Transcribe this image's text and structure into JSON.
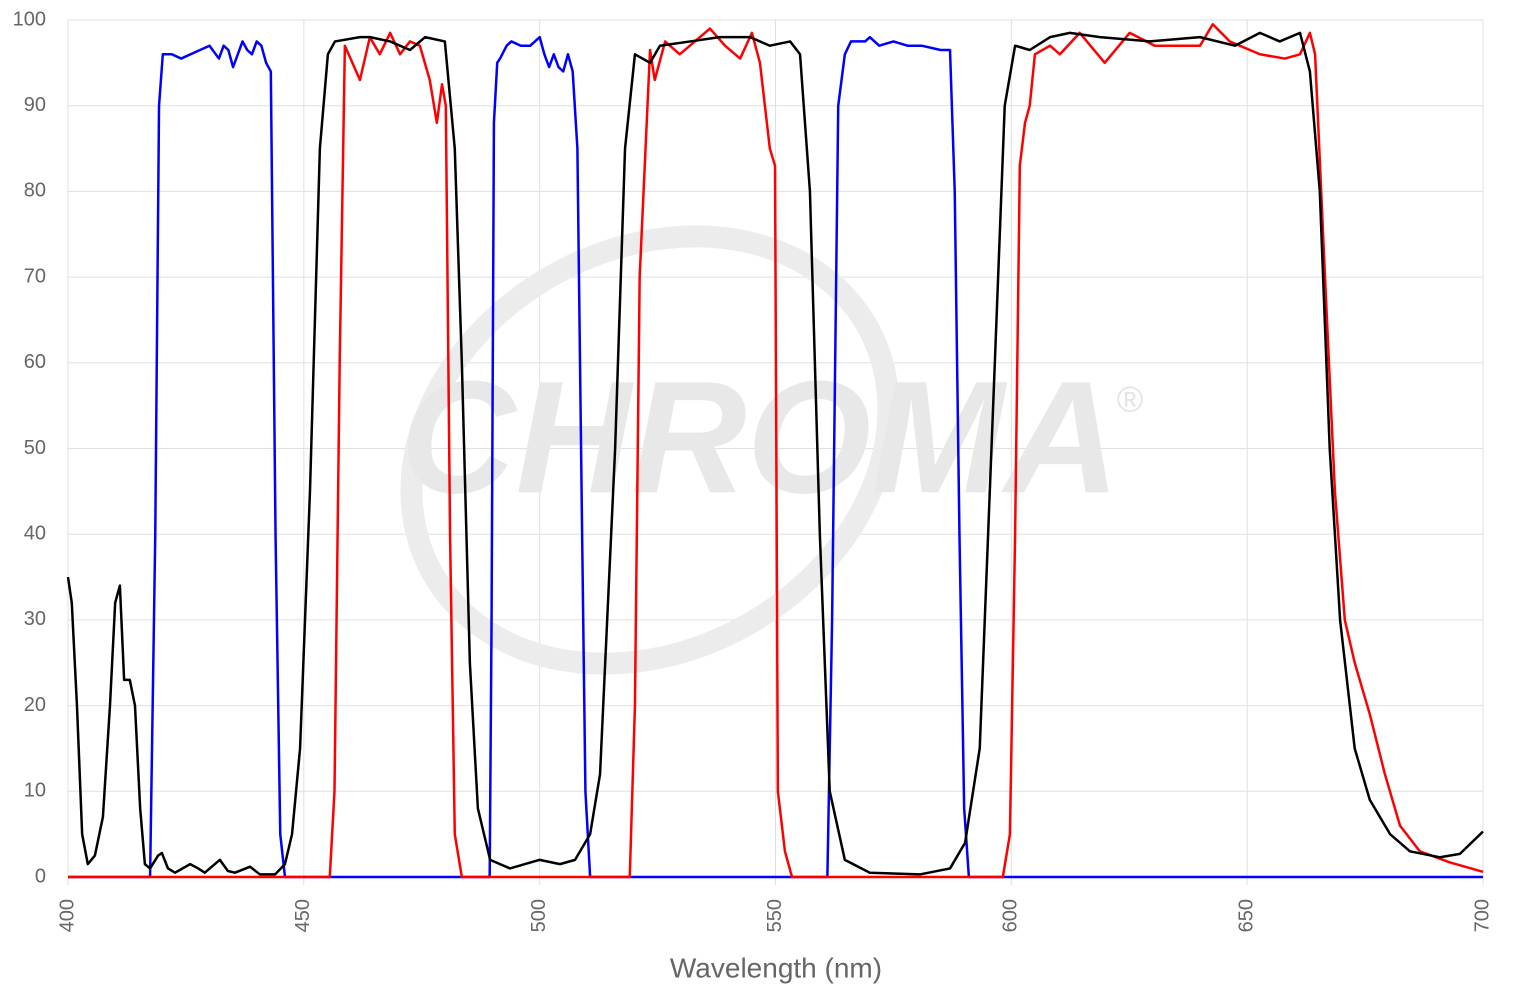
{
  "chart_data": {
    "type": "line",
    "xlabel": "Wavelength (nm)",
    "watermark": "CHROMA",
    "watermark_mark": "®",
    "xlim": [
      400,
      700
    ],
    "xticks": [
      400,
      450,
      500,
      550,
      600,
      650,
      700
    ],
    "ylim": [
      0,
      100
    ],
    "yticks": [
      0,
      10,
      20,
      30,
      40,
      50,
      60,
      70,
      80,
      90,
      100
    ],
    "grid": true,
    "series": [
      {
        "color": "#0000ff",
        "x": [
          400,
          417.4,
          418.5,
          419.3,
          420.1,
          422,
          424,
          426,
          428,
          430,
          432,
          433,
          434,
          435,
          436,
          437,
          438,
          439,
          440,
          441,
          442,
          443,
          444,
          445,
          446,
          489.4,
          489.8,
          490.3,
          491,
          491.6,
          493,
          494,
          496,
          498,
          500,
          501,
          502,
          503,
          504,
          505,
          506,
          507,
          508,
          509,
          509.7,
          510.7,
          561,
          562,
          563.3,
          564.7,
          566,
          569,
          570,
          572,
          575,
          578,
          581,
          585,
          587,
          588,
          589,
          590,
          591,
          700
        ],
        "values": [
          0,
          0,
          40,
          90,
          96,
          96,
          95.5,
          96,
          96.5,
          97,
          95.5,
          97,
          96.5,
          94.5,
          96,
          97.5,
          96.5,
          96,
          97.5,
          97,
          95,
          94,
          40,
          5,
          0,
          0,
          30,
          88,
          95,
          95.5,
          97,
          97.5,
          97,
          97,
          98,
          96,
          94.5,
          96,
          94.5,
          94,
          96,
          94,
          85,
          40,
          10,
          0,
          0,
          30,
          90,
          96,
          97.5,
          97.5,
          98,
          97,
          97.5,
          97,
          97,
          96.5,
          96.5,
          80,
          40,
          8,
          0,
          0
        ]
      },
      {
        "color": "#ff0000",
        "x": [
          400,
          455.5,
          456.5,
          457.6,
          458.7,
          461.9,
          464,
          466.1,
          468.3,
          470.4,
          472.5,
          474.6,
          476.7,
          478.2,
          479.3,
          480.1,
          481,
          482,
          483.5,
          519.1,
          520.2,
          521.2,
          523.4,
          524.4,
          526.6,
          529.7,
          532.9,
          536.1,
          539.3,
          542.5,
          545,
          546.7,
          548.8,
          549.9,
          550.5,
          552,
          553.5,
          598.2,
          599.7,
          600.8,
          601.8,
          602.9,
          603.9,
          605,
          608.2,
          610.3,
          614.5,
          619.8,
          625.1,
          630.4,
          635.7,
          640,
          642.7,
          646.3,
          652.7,
          658,
          661.2,
          663.3,
          664.4,
          666.5,
          668.6,
          670.7,
          672.8,
          676,
          679.2,
          682.4,
          686.6,
          693,
          700
        ],
        "values": [
          0,
          0,
          10,
          60,
          97,
          93,
          98,
          96,
          98.5,
          96,
          97.5,
          97,
          93,
          88,
          92.5,
          90,
          40,
          5,
          0,
          0,
          20,
          70,
          96.5,
          93,
          97.5,
          96,
          97.5,
          99,
          97,
          95.5,
          98.5,
          95,
          85,
          83,
          10,
          3,
          0,
          0,
          5,
          40,
          83,
          88,
          90,
          96,
          97,
          96,
          98.5,
          95,
          98.5,
          97,
          97,
          97,
          99.5,
          97.5,
          96,
          95.5,
          96,
          98.5,
          96,
          70,
          45,
          30,
          25,
          19,
          12,
          6,
          3,
          1.7,
          0.6
        ]
      },
      {
        "color": "#000000",
        "x": [
          400,
          400.8,
          401.9,
          403,
          404.2,
          405.7,
          407.4,
          408.9,
          410,
          411,
          411.9,
          413.1,
          414.2,
          415.3,
          416.3,
          417.4,
          419.1,
          419.9,
          421.2,
          422.7,
          425.9,
          427.6,
          429,
          432.2,
          433.9,
          435.4,
          438.6,
          440.7,
          443.9,
          446,
          447.5,
          449.2,
          451.3,
          453.4,
          455.1,
          456.6,
          461.9,
          464,
          468.3,
          472.5,
          475.7,
          479.9,
          482,
          483.5,
          485.2,
          486.9,
          489.5,
          493.7,
          500,
          504.3,
          507.5,
          510.7,
          512.8,
          516,
          518.1,
          520.2,
          523.4,
          525.5,
          531.9,
          538.2,
          544.6,
          548.8,
          553.1,
          555.2,
          557.3,
          559.4,
          561.5,
          564.7,
          570,
          580.6,
          587,
          590.2,
          593.3,
          596.5,
          598.6,
          600.8,
          603.9,
          608.2,
          612.4,
          618.8,
          629.4,
          640,
          647.4,
          652.7,
          656.9,
          661.2,
          663.3,
          665.4,
          667.5,
          669.7,
          672.8,
          676,
          680.3,
          684.5,
          690.9,
          695.1,
          700
        ],
        "values": [
          35,
          32,
          20,
          5,
          1.5,
          2.5,
          7,
          20,
          32,
          34,
          23,
          23,
          20,
          8,
          1.5,
          1,
          2.5,
          2.8,
          1,
          0.5,
          1.5,
          1,
          0.5,
          2,
          0.7,
          0.5,
          1.2,
          0.3,
          0.3,
          1.5,
          5,
          15,
          45,
          85,
          96,
          97.5,
          98,
          98,
          97.5,
          96.5,
          98,
          97.5,
          85,
          60,
          25,
          8,
          2,
          1,
          2,
          1.5,
          2,
          5,
          12,
          50,
          85,
          96,
          95,
          97,
          97.5,
          98,
          98,
          97,
          97.5,
          96,
          80,
          40,
          10,
          2,
          0.5,
          0.3,
          1,
          4,
          15,
          60,
          90,
          97,
          96.5,
          98,
          98.5,
          98,
          97.5,
          98,
          97,
          98.5,
          97.5,
          98.5,
          94,
          80,
          50,
          30,
          15,
          9,
          5,
          3,
          2.3,
          2.7,
          5.3
        ]
      }
    ]
  }
}
